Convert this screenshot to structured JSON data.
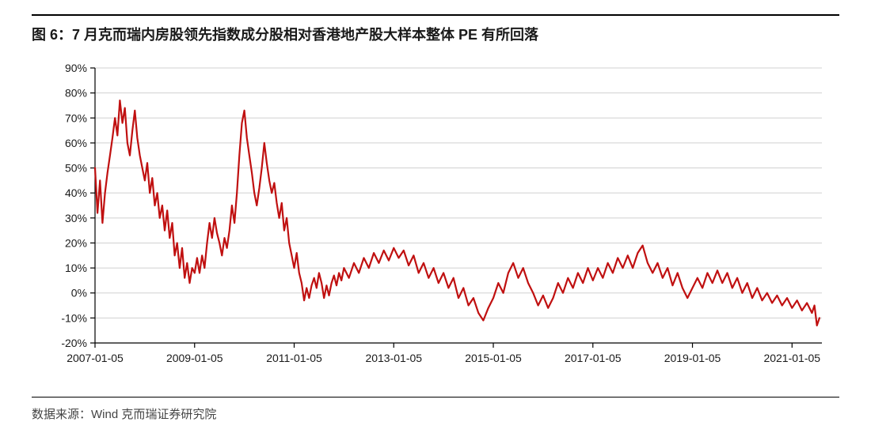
{
  "title": "图 6：7 月克而瑞内房股领先指数成分股相对香港地产股大样本整体 PE 有所回落",
  "source": "数据来源：Wind  克而瑞证券研究院",
  "chart": {
    "type": "line",
    "line_color": "#c01010",
    "line_width": 2.2,
    "background_color": "#ffffff",
    "grid_color": "#d0d0d0",
    "axis_color": "#000000",
    "text_color": "#1a1a1a",
    "ylim": [
      -20,
      90
    ],
    "ytick_step": 10,
    "ytick_format": "percent",
    "yticks": [
      -20,
      -10,
      0,
      10,
      20,
      30,
      40,
      50,
      60,
      70,
      80,
      90
    ],
    "xlim": [
      2007.0,
      2021.6
    ],
    "xticks": [
      2007,
      2009,
      2011,
      2013,
      2015,
      2017,
      2019,
      2021
    ],
    "xtick_labels": [
      "2007-01-05",
      "2009-01-05",
      "2011-01-05",
      "2013-01-05",
      "2015-01-05",
      "2017-01-05",
      "2019-01-05",
      "2021-01-05"
    ],
    "label_fontsize": 14,
    "series": [
      {
        "x": 2007.0,
        "y": 50
      },
      {
        "x": 2007.05,
        "y": 32
      },
      {
        "x": 2007.1,
        "y": 45
      },
      {
        "x": 2007.15,
        "y": 28
      },
      {
        "x": 2007.2,
        "y": 40
      },
      {
        "x": 2007.25,
        "y": 48
      },
      {
        "x": 2007.3,
        "y": 55
      },
      {
        "x": 2007.35,
        "y": 62
      },
      {
        "x": 2007.4,
        "y": 70
      },
      {
        "x": 2007.45,
        "y": 63
      },
      {
        "x": 2007.5,
        "y": 77
      },
      {
        "x": 2007.55,
        "y": 68
      },
      {
        "x": 2007.6,
        "y": 74
      },
      {
        "x": 2007.65,
        "y": 60
      },
      {
        "x": 2007.7,
        "y": 55
      },
      {
        "x": 2007.75,
        "y": 65
      },
      {
        "x": 2007.8,
        "y": 73
      },
      {
        "x": 2007.85,
        "y": 62
      },
      {
        "x": 2007.9,
        "y": 55
      },
      {
        "x": 2007.95,
        "y": 50
      },
      {
        "x": 2008.0,
        "y": 45
      },
      {
        "x": 2008.05,
        "y": 52
      },
      {
        "x": 2008.1,
        "y": 40
      },
      {
        "x": 2008.15,
        "y": 46
      },
      {
        "x": 2008.2,
        "y": 35
      },
      {
        "x": 2008.25,
        "y": 40
      },
      {
        "x": 2008.3,
        "y": 30
      },
      {
        "x": 2008.35,
        "y": 35
      },
      {
        "x": 2008.4,
        "y": 25
      },
      {
        "x": 2008.45,
        "y": 33
      },
      {
        "x": 2008.5,
        "y": 22
      },
      {
        "x": 2008.55,
        "y": 28
      },
      {
        "x": 2008.6,
        "y": 15
      },
      {
        "x": 2008.65,
        "y": 20
      },
      {
        "x": 2008.7,
        "y": 10
      },
      {
        "x": 2008.75,
        "y": 18
      },
      {
        "x": 2008.8,
        "y": 6
      },
      {
        "x": 2008.85,
        "y": 12
      },
      {
        "x": 2008.9,
        "y": 4
      },
      {
        "x": 2008.95,
        "y": 10
      },
      {
        "x": 2009.0,
        "y": 8
      },
      {
        "x": 2009.05,
        "y": 14
      },
      {
        "x": 2009.1,
        "y": 8
      },
      {
        "x": 2009.15,
        "y": 15
      },
      {
        "x": 2009.2,
        "y": 10
      },
      {
        "x": 2009.25,
        "y": 20
      },
      {
        "x": 2009.3,
        "y": 28
      },
      {
        "x": 2009.35,
        "y": 22
      },
      {
        "x": 2009.4,
        "y": 30
      },
      {
        "x": 2009.45,
        "y": 24
      },
      {
        "x": 2009.5,
        "y": 20
      },
      {
        "x": 2009.55,
        "y": 15
      },
      {
        "x": 2009.6,
        "y": 22
      },
      {
        "x": 2009.65,
        "y": 18
      },
      {
        "x": 2009.7,
        "y": 25
      },
      {
        "x": 2009.75,
        "y": 35
      },
      {
        "x": 2009.8,
        "y": 28
      },
      {
        "x": 2009.85,
        "y": 40
      },
      {
        "x": 2009.9,
        "y": 55
      },
      {
        "x": 2009.95,
        "y": 68
      },
      {
        "x": 2010.0,
        "y": 73
      },
      {
        "x": 2010.05,
        "y": 62
      },
      {
        "x": 2010.1,
        "y": 55
      },
      {
        "x": 2010.15,
        "y": 48
      },
      {
        "x": 2010.2,
        "y": 40
      },
      {
        "x": 2010.25,
        "y": 35
      },
      {
        "x": 2010.3,
        "y": 42
      },
      {
        "x": 2010.35,
        "y": 50
      },
      {
        "x": 2010.4,
        "y": 60
      },
      {
        "x": 2010.45,
        "y": 52
      },
      {
        "x": 2010.5,
        "y": 45
      },
      {
        "x": 2010.55,
        "y": 40
      },
      {
        "x": 2010.6,
        "y": 44
      },
      {
        "x": 2010.65,
        "y": 36
      },
      {
        "x": 2010.7,
        "y": 30
      },
      {
        "x": 2010.75,
        "y": 36
      },
      {
        "x": 2010.8,
        "y": 25
      },
      {
        "x": 2010.85,
        "y": 30
      },
      {
        "x": 2010.9,
        "y": 20
      },
      {
        "x": 2010.95,
        "y": 15
      },
      {
        "x": 2011.0,
        "y": 10
      },
      {
        "x": 2011.05,
        "y": 16
      },
      {
        "x": 2011.1,
        "y": 8
      },
      {
        "x": 2011.15,
        "y": 4
      },
      {
        "x": 2011.2,
        "y": -3
      },
      {
        "x": 2011.25,
        "y": 2
      },
      {
        "x": 2011.3,
        "y": -2
      },
      {
        "x": 2011.35,
        "y": 3
      },
      {
        "x": 2011.4,
        "y": 6
      },
      {
        "x": 2011.45,
        "y": 2
      },
      {
        "x": 2011.5,
        "y": 8
      },
      {
        "x": 2011.55,
        "y": 4
      },
      {
        "x": 2011.6,
        "y": -2
      },
      {
        "x": 2011.65,
        "y": 3
      },
      {
        "x": 2011.7,
        "y": -1
      },
      {
        "x": 2011.75,
        "y": 4
      },
      {
        "x": 2011.8,
        "y": 7
      },
      {
        "x": 2011.85,
        "y": 3
      },
      {
        "x": 2011.9,
        "y": 8
      },
      {
        "x": 2011.95,
        "y": 5
      },
      {
        "x": 2012.0,
        "y": 10
      },
      {
        "x": 2012.1,
        "y": 6
      },
      {
        "x": 2012.2,
        "y": 12
      },
      {
        "x": 2012.3,
        "y": 8
      },
      {
        "x": 2012.4,
        "y": 14
      },
      {
        "x": 2012.5,
        "y": 10
      },
      {
        "x": 2012.6,
        "y": 16
      },
      {
        "x": 2012.7,
        "y": 12
      },
      {
        "x": 2012.8,
        "y": 17
      },
      {
        "x": 2012.9,
        "y": 13
      },
      {
        "x": 2013.0,
        "y": 18
      },
      {
        "x": 2013.1,
        "y": 14
      },
      {
        "x": 2013.2,
        "y": 17
      },
      {
        "x": 2013.3,
        "y": 11
      },
      {
        "x": 2013.4,
        "y": 15
      },
      {
        "x": 2013.5,
        "y": 8
      },
      {
        "x": 2013.6,
        "y": 12
      },
      {
        "x": 2013.7,
        "y": 6
      },
      {
        "x": 2013.8,
        "y": 10
      },
      {
        "x": 2013.9,
        "y": 4
      },
      {
        "x": 2014.0,
        "y": 8
      },
      {
        "x": 2014.1,
        "y": 2
      },
      {
        "x": 2014.2,
        "y": 6
      },
      {
        "x": 2014.3,
        "y": -2
      },
      {
        "x": 2014.4,
        "y": 2
      },
      {
        "x": 2014.5,
        "y": -5
      },
      {
        "x": 2014.6,
        "y": -2
      },
      {
        "x": 2014.7,
        "y": -8
      },
      {
        "x": 2014.8,
        "y": -11
      },
      {
        "x": 2014.9,
        "y": -6
      },
      {
        "x": 2015.0,
        "y": -2
      },
      {
        "x": 2015.1,
        "y": 4
      },
      {
        "x": 2015.2,
        "y": 0
      },
      {
        "x": 2015.3,
        "y": 8
      },
      {
        "x": 2015.4,
        "y": 12
      },
      {
        "x": 2015.5,
        "y": 6
      },
      {
        "x": 2015.6,
        "y": 10
      },
      {
        "x": 2015.7,
        "y": 4
      },
      {
        "x": 2015.8,
        "y": 0
      },
      {
        "x": 2015.9,
        "y": -5
      },
      {
        "x": 2016.0,
        "y": -1
      },
      {
        "x": 2016.1,
        "y": -6
      },
      {
        "x": 2016.2,
        "y": -2
      },
      {
        "x": 2016.3,
        "y": 4
      },
      {
        "x": 2016.4,
        "y": 0
      },
      {
        "x": 2016.5,
        "y": 6
      },
      {
        "x": 2016.6,
        "y": 2
      },
      {
        "x": 2016.7,
        "y": 8
      },
      {
        "x": 2016.8,
        "y": 4
      },
      {
        "x": 2016.9,
        "y": 10
      },
      {
        "x": 2017.0,
        "y": 5
      },
      {
        "x": 2017.1,
        "y": 10
      },
      {
        "x": 2017.2,
        "y": 6
      },
      {
        "x": 2017.3,
        "y": 12
      },
      {
        "x": 2017.4,
        "y": 8
      },
      {
        "x": 2017.5,
        "y": 14
      },
      {
        "x": 2017.6,
        "y": 10
      },
      {
        "x": 2017.7,
        "y": 15
      },
      {
        "x": 2017.8,
        "y": 10
      },
      {
        "x": 2017.9,
        "y": 16
      },
      {
        "x": 2018.0,
        "y": 19
      },
      {
        "x": 2018.1,
        "y": 12
      },
      {
        "x": 2018.2,
        "y": 8
      },
      {
        "x": 2018.3,
        "y": 12
      },
      {
        "x": 2018.4,
        "y": 6
      },
      {
        "x": 2018.5,
        "y": 10
      },
      {
        "x": 2018.6,
        "y": 3
      },
      {
        "x": 2018.7,
        "y": 8
      },
      {
        "x": 2018.8,
        "y": 2
      },
      {
        "x": 2018.9,
        "y": -2
      },
      {
        "x": 2019.0,
        "y": 2
      },
      {
        "x": 2019.1,
        "y": 6
      },
      {
        "x": 2019.2,
        "y": 2
      },
      {
        "x": 2019.3,
        "y": 8
      },
      {
        "x": 2019.4,
        "y": 4
      },
      {
        "x": 2019.5,
        "y": 9
      },
      {
        "x": 2019.6,
        "y": 4
      },
      {
        "x": 2019.7,
        "y": 8
      },
      {
        "x": 2019.8,
        "y": 2
      },
      {
        "x": 2019.9,
        "y": 6
      },
      {
        "x": 2020.0,
        "y": 0
      },
      {
        "x": 2020.1,
        "y": 4
      },
      {
        "x": 2020.2,
        "y": -2
      },
      {
        "x": 2020.3,
        "y": 2
      },
      {
        "x": 2020.4,
        "y": -3
      },
      {
        "x": 2020.5,
        "y": 0
      },
      {
        "x": 2020.6,
        "y": -4
      },
      {
        "x": 2020.7,
        "y": -1
      },
      {
        "x": 2020.8,
        "y": -5
      },
      {
        "x": 2020.9,
        "y": -2
      },
      {
        "x": 2021.0,
        "y": -6
      },
      {
        "x": 2021.1,
        "y": -3
      },
      {
        "x": 2021.2,
        "y": -7
      },
      {
        "x": 2021.3,
        "y": -4
      },
      {
        "x": 2021.4,
        "y": -8
      },
      {
        "x": 2021.45,
        "y": -5
      },
      {
        "x": 2021.5,
        "y": -13
      },
      {
        "x": 2021.55,
        "y": -10
      }
    ]
  }
}
